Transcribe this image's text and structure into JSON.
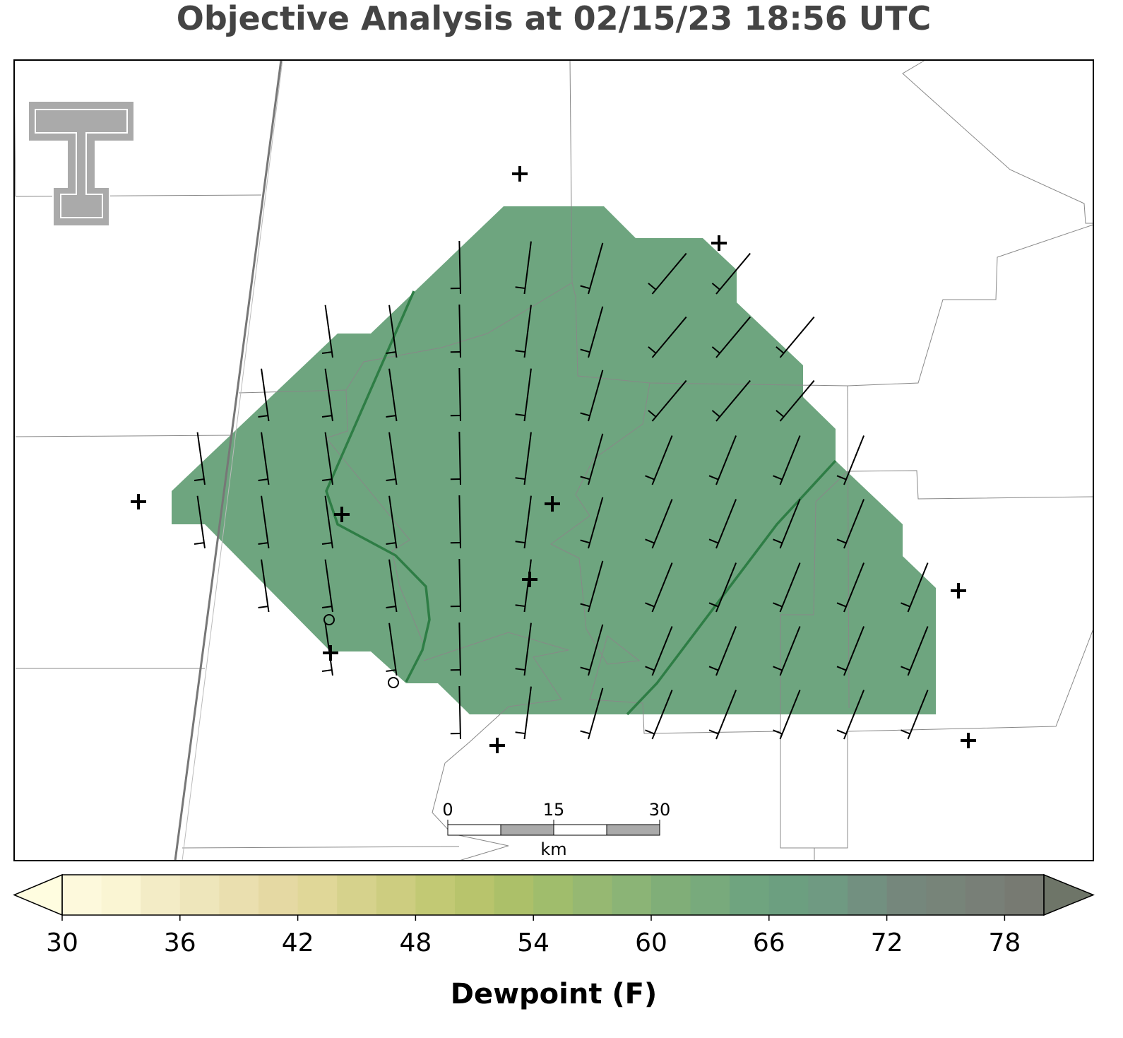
{
  "title": "Objective Analysis at 02/15/23 18:56 UTC",
  "colorbar": {
    "label": "Dewpoint (F)",
    "range": [
      30,
      80
    ],
    "ticks": [
      30,
      36,
      42,
      48,
      54,
      60,
      66,
      72,
      78
    ],
    "levels": [
      30,
      32,
      34,
      36,
      38,
      40,
      42,
      44,
      46,
      48,
      50,
      52,
      54,
      56,
      58,
      60,
      62,
      64,
      66,
      68,
      70,
      72,
      74,
      76,
      78,
      80
    ],
    "colors": [
      "#fdf9dc",
      "#faf5d3",
      "#f3ecc6",
      "#eee6bb",
      "#eadfaf",
      "#e5d9a3",
      "#e0d798",
      "#d6d28c",
      "#cdcd80",
      "#c2c974",
      "#b8c46c",
      "#acc069",
      "#a0bd6c",
      "#96b872",
      "#8bb476",
      "#80ae78",
      "#78aa7c",
      "#6fa47f",
      "#6c9f80",
      "#6f9a82",
      "#729080",
      "#75877c",
      "#778479",
      "#787f77",
      "#777a72"
    ],
    "under_color": "#fffde0",
    "over_color": "#6e7568"
  },
  "scale_bar": {
    "ticks": [
      0,
      15,
      30
    ],
    "unit": "km"
  }
}
